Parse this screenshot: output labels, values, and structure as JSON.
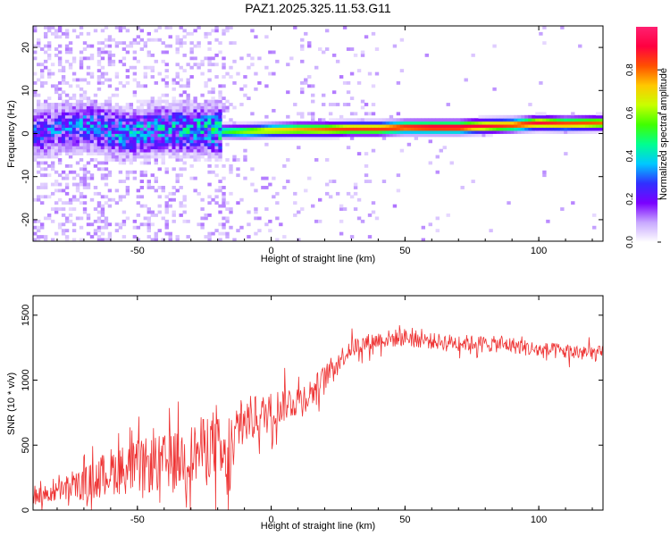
{
  "title": "PAZ1.2025.325.11.53.G11",
  "chart_data": [
    {
      "type": "heatmap",
      "title": "PAZ1.2025.325.11.53.G11",
      "xlabel": "Height of straight line (km)",
      "ylabel": "Frequency (Hz)",
      "xlim": [
        -89,
        124
      ],
      "ylim": [
        -25,
        25
      ],
      "xticks": [
        -50,
        0,
        50,
        100
      ],
      "xtick_labels": [
        "-50",
        "0",
        "50",
        "100"
      ],
      "yticks": [
        -20,
        -10,
        0,
        10,
        20
      ],
      "ytick_labels": [
        "-20",
        "-10",
        "0",
        "10",
        "20"
      ],
      "colorbar": {
        "label": "Normalized spectral amplitude",
        "range": [
          0,
          1
        ],
        "ticks": [
          0,
          0.2,
          0.4,
          0.6,
          0.8
        ],
        "tick_labels": [
          "0.0",
          "0.2",
          "0.4",
          "0.6",
          "0.8"
        ],
        "colors": [
          "#ffffff",
          "#c8a8ff",
          "#7a00ff",
          "#3030ff",
          "#00c8ff",
          "#00ff90",
          "#40ff00",
          "#c8ff00",
          "#ffc800",
          "#ff5000",
          "#ff0040",
          "#ff2070"
        ]
      },
      "ridge": {
        "description_points_x": [
          -89,
          -70,
          -55,
          -40,
          -25,
          -18,
          -10,
          0,
          10,
          20,
          30,
          40,
          50,
          60,
          70,
          80,
          90,
          100,
          110,
          124
        ],
        "frequency": [
          0,
          2,
          0,
          1,
          1,
          0.5,
          0.5,
          0.8,
          1,
          1,
          1.2,
          1.2,
          1.5,
          1.5,
          1.5,
          1.8,
          2,
          2.5,
          2.3,
          2.5
        ],
        "amplitude": [
          0.3,
          0.35,
          0.4,
          0.4,
          0.45,
          0.5,
          0.6,
          0.7,
          0.75,
          0.8,
          0.85,
          0.85,
          0.9,
          0.95,
          0.95,
          0.9,
          0.85,
          0.9,
          0.85,
          0.8
        ]
      }
    },
    {
      "type": "line",
      "title": "",
      "xlabel": "Height of straight line (km)",
      "ylabel": "SNR (10 * v/v)",
      "xlim": [
        -89,
        124
      ],
      "ylim": [
        0,
        1650
      ],
      "xticks": [
        -50,
        0,
        50,
        100
      ],
      "xtick_labels": [
        "-50",
        "0",
        "50",
        "100"
      ],
      "yticks": [
        0,
        500,
        1000,
        1500
      ],
      "ytick_labels": [
        "0",
        "500",
        "1000",
        "1500"
      ],
      "series": [
        {
          "name": "SNR",
          "color": "#ee3333",
          "x": [
            -89,
            -80,
            -70,
            -60,
            -50,
            -40,
            -30,
            -22,
            -18,
            -16,
            -12,
            -8,
            -4,
            0,
            5,
            10,
            15,
            20,
            25,
            30,
            40,
            50,
            60,
            70,
            80,
            90,
            100,
            110,
            124
          ],
          "y": [
            100,
            140,
            200,
            300,
            330,
            360,
            420,
            520,
            380,
            250,
            650,
            700,
            720,
            760,
            820,
            850,
            900,
            1020,
            1150,
            1250,
            1310,
            1330,
            1300,
            1290,
            1280,
            1270,
            1230,
            1220,
            1200
          ],
          "spread": [
            90,
            110,
            180,
            260,
            300,
            320,
            340,
            380,
            420,
            420,
            300,
            260,
            240,
            220,
            200,
            180,
            170,
            140,
            120,
            110,
            100,
            100,
            90,
            90,
            90,
            90,
            90,
            90,
            90
          ]
        }
      ]
    }
  ]
}
